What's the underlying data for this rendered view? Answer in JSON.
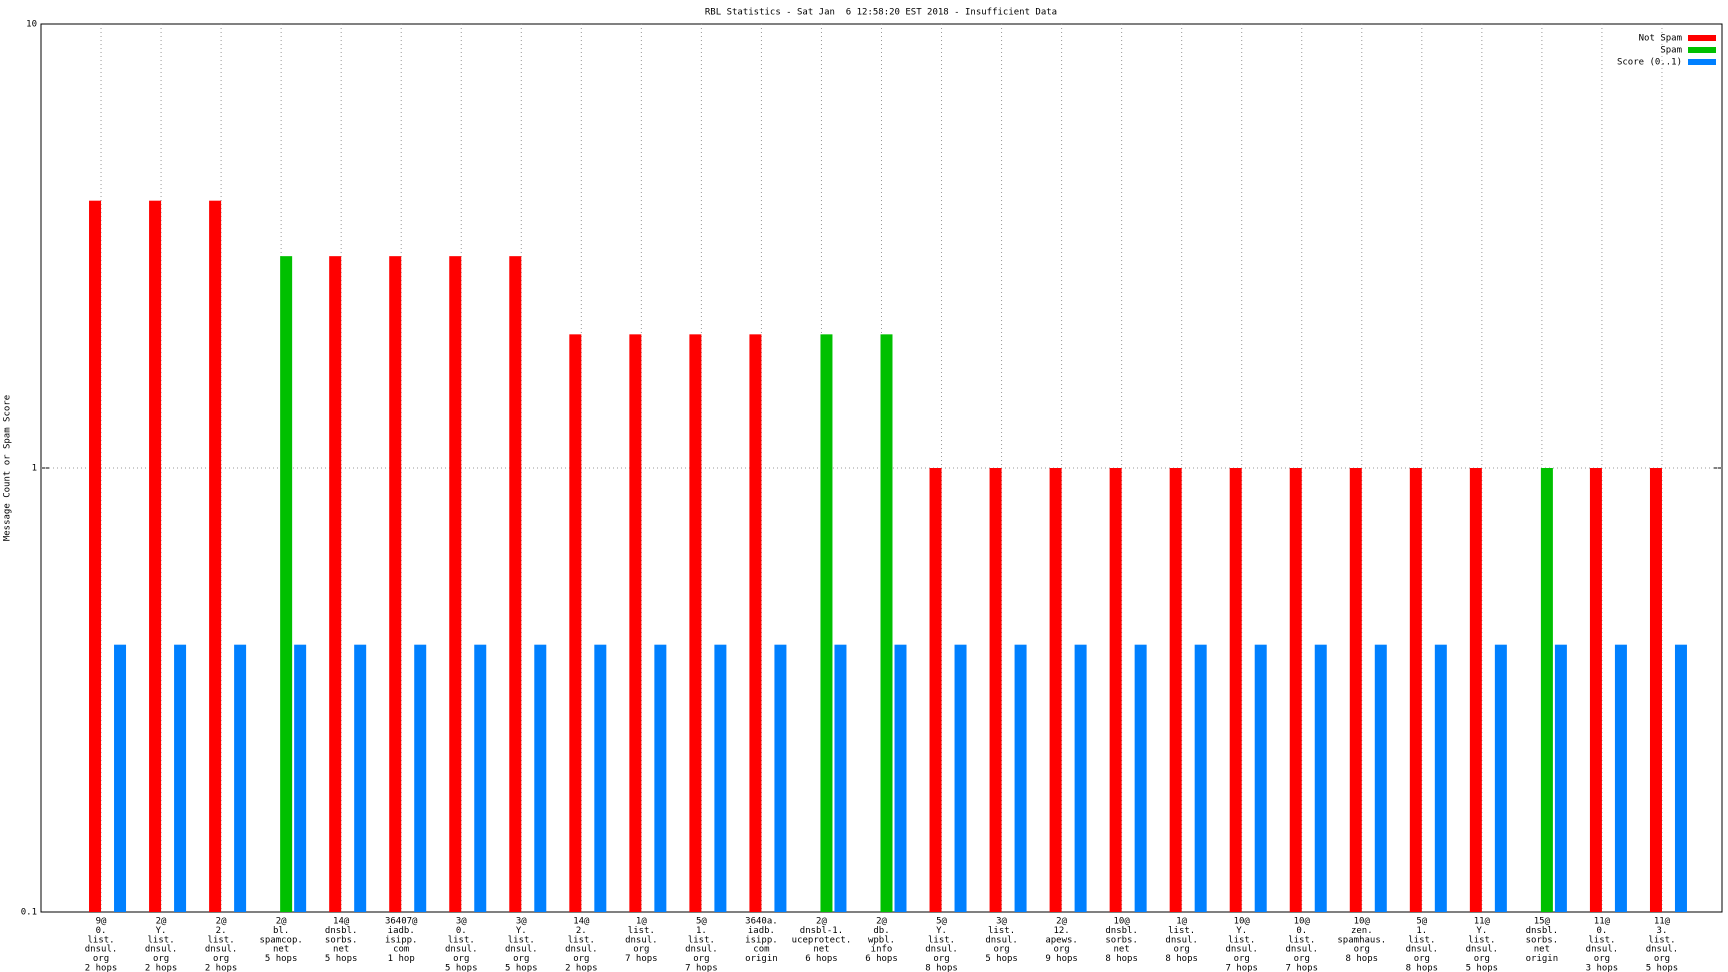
{
  "chart_data": {
    "type": "bar",
    "title": "RBL Statistics - Sat Jan  6 12:58:20 EST 2018 - Insufficient Data",
    "y_label": "Message Count or Spam Score",
    "log_y": true,
    "grid": true,
    "legend": "top-right",
    "ylim": [
      0.1,
      10
    ],
    "yticks": [
      0.1,
      1,
      10
    ],
    "categories": [
      [
        "9@",
        "0.",
        "list.",
        "dnsul.",
        "org",
        "2 hops"
      ],
      [
        "2@",
        "Y.",
        "list.",
        "dnsul.",
        "org",
        "2 hops"
      ],
      [
        "2@",
        "2.",
        "list.",
        "dnsul.",
        "org",
        "2 hops"
      ],
      [
        "2@",
        "bl.",
        "spamcop.",
        "net",
        "5 hops"
      ],
      [
        "14@",
        "dnsbl.",
        "sorbs.",
        "net",
        "5 hops"
      ],
      [
        "36407@",
        "iadb.",
        "isipp.",
        "com",
        "1 hop"
      ],
      [
        "3@",
        "0.",
        "list.",
        "dnsul.",
        "org",
        "5 hops"
      ],
      [
        "3@",
        "Y.",
        "list.",
        "dnsul.",
        "org",
        "5 hops"
      ],
      [
        "14@",
        "2.",
        "list.",
        "dnsul.",
        "org",
        "2 hops"
      ],
      [
        "1@",
        "list.",
        "dnsul.",
        "org",
        "7 hops"
      ],
      [
        "5@",
        "1.",
        "list.",
        "dnsul.",
        "org",
        "7 hops"
      ],
      [
        "3640a.",
        "iadb.",
        "isipp.",
        "com",
        "origin"
      ],
      [
        "2@",
        "dnsbl-1.",
        "uceprotect.",
        "net",
        "6 hops"
      ],
      [
        "2@",
        "db.",
        "wpbl.",
        "info",
        "6 hops"
      ],
      [
        "5@",
        "Y.",
        "list.",
        "dnsul.",
        "org",
        "8 hops"
      ],
      [
        "3@",
        "list.",
        "dnsul.",
        "org",
        "5 hops"
      ],
      [
        "2@",
        "12.",
        "apews.",
        "org",
        "9 hops"
      ],
      [
        "10@",
        "dnsbl.",
        "sorbs.",
        "net",
        "8 hops"
      ],
      [
        "1@",
        "list.",
        "dnsul.",
        "org",
        "8 hops"
      ],
      [
        "10@",
        "Y.",
        "list.",
        "dnsul.",
        "org",
        "7 hops"
      ],
      [
        "10@",
        "0.",
        "list.",
        "dnsul.",
        "org",
        "7 hops"
      ],
      [
        "10@",
        "zen.",
        "spamhaus.",
        "org",
        "8 hops"
      ],
      [
        "5@",
        "1.",
        "list.",
        "dnsul.",
        "org",
        "8 hops"
      ],
      [
        "11@",
        "Y.",
        "list.",
        "dnsul.",
        "org",
        "5 hops"
      ],
      [
        "15@",
        "dnsbl.",
        "sorbs.",
        "net",
        "origin"
      ],
      [
        "11@",
        "0.",
        "list.",
        "dnsul.",
        "org",
        "3 hops"
      ],
      [
        "11@",
        "3.",
        "list.",
        "dnsul.",
        "org",
        "5 hops"
      ]
    ],
    "series": [
      {
        "name": "Not Spam",
        "color": "#ff0000",
        "values": [
          4,
          4,
          4,
          null,
          3,
          3,
          3,
          3,
          2,
          2,
          2,
          2,
          null,
          null,
          1,
          1,
          1,
          1,
          1,
          1,
          1,
          1,
          1,
          1,
          null,
          1,
          1
        ]
      },
      {
        "name": "Spam",
        "color": "#00c000",
        "values": [
          null,
          null,
          null,
          3,
          null,
          null,
          null,
          null,
          null,
          null,
          null,
          null,
          2,
          2,
          null,
          null,
          null,
          null,
          null,
          null,
          null,
          null,
          null,
          null,
          1,
          null,
          null
        ]
      },
      {
        "name": "Score (0..1)",
        "color": "#0080ff",
        "values": [
          0.4,
          0.4,
          0.4,
          0.4,
          0.4,
          0.4,
          0.4,
          0.4,
          0.4,
          0.4,
          0.4,
          0.4,
          0.4,
          0.4,
          0.4,
          0.4,
          0.4,
          0.4,
          0.4,
          0.4,
          0.4,
          0.4,
          0.4,
          0.4,
          0.4,
          0.4,
          0.4
        ]
      }
    ]
  }
}
